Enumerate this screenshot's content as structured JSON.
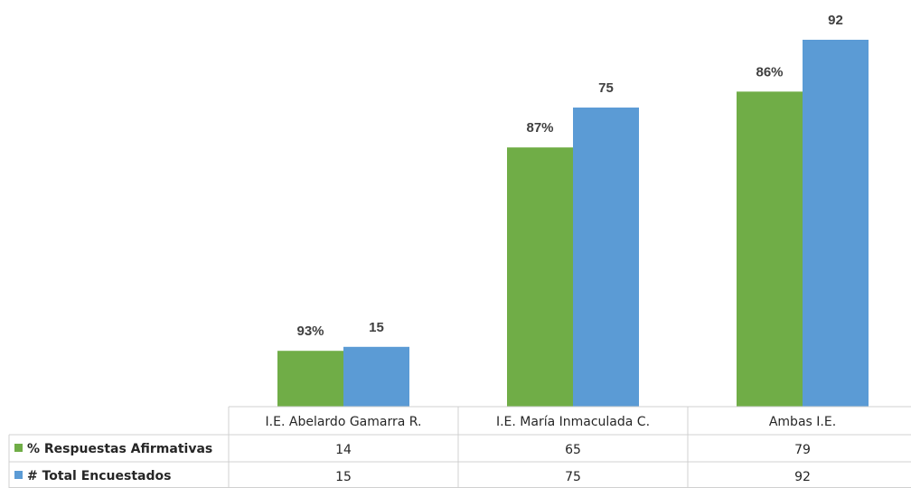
{
  "chart_data": {
    "type": "bar",
    "categories": [
      "I.E. Abelardo Gamarra R.",
      "I.E. María Inmaculada C.",
      "Ambas I.E."
    ],
    "series": [
      {
        "name": "% Respuestas Afirmativas",
        "values": [
          14,
          65,
          79
        ],
        "data_labels": [
          "93%",
          "87%",
          "86%"
        ],
        "table_values": [
          "14",
          "65",
          "79"
        ],
        "color": "#70AD47"
      },
      {
        "name": "# Total Encuestados",
        "values": [
          15,
          75,
          92
        ],
        "data_labels": [
          "15",
          "75",
          "92"
        ],
        "table_values": [
          "15",
          "75",
          "92"
        ],
        "color": "#5B9BD5"
      }
    ],
    "ylim": [
      0,
      92
    ],
    "data_table": true,
    "gridlines": false,
    "legend": "data-table"
  }
}
